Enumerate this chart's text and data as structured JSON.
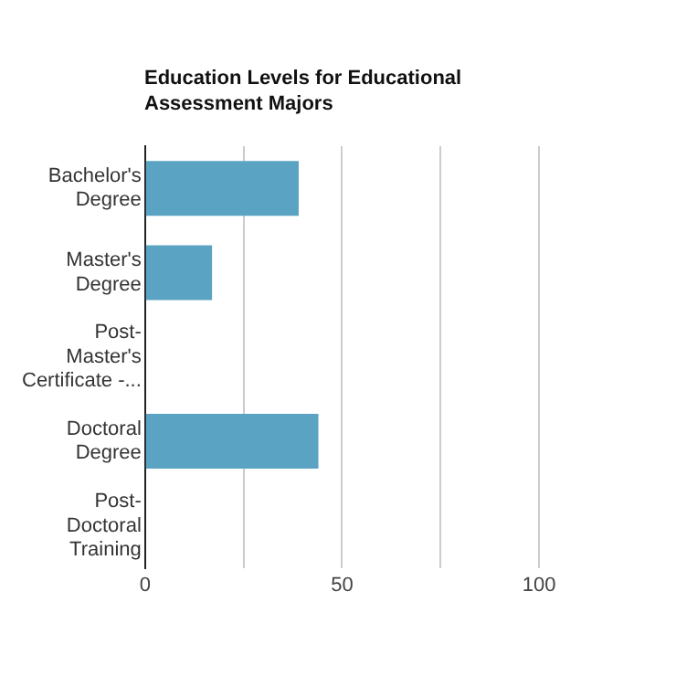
{
  "chart_data": {
    "type": "bar",
    "orientation": "horizontal",
    "title": "Education Levels for Educational Assessment Majors",
    "categories": [
      "Bachelor's Degree",
      "Master's Degree",
      "Post-Master's Certificate -...",
      "Doctoral Degree",
      "Post-Doctoral Training"
    ],
    "values": [
      39,
      17,
      0,
      44,
      0
    ],
    "color": "#5ba3c2",
    "xlim": [
      0,
      100
    ],
    "xticks": [
      0,
      {
        "value": 25,
        "label": null
      },
      50,
      {
        "value": 75,
        "label": null
      },
      100
    ],
    "grid": "x",
    "legend": false
  }
}
